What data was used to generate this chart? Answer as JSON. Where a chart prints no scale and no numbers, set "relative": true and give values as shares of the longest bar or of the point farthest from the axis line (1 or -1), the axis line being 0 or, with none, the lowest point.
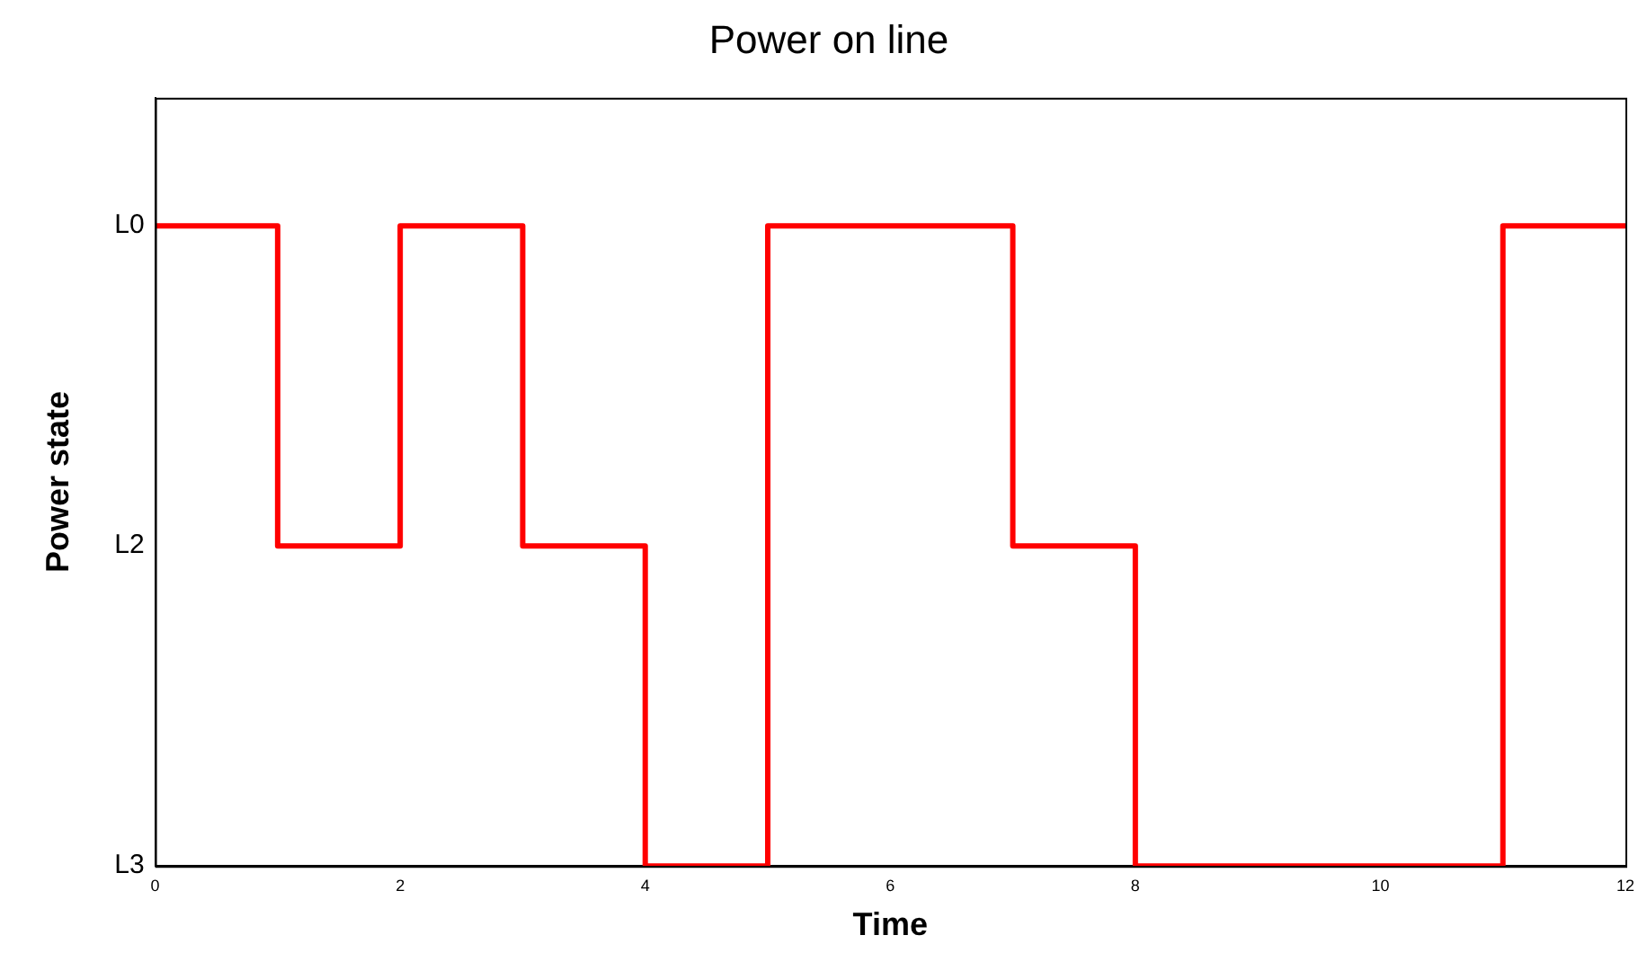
{
  "chart_data": {
    "type": "step",
    "title": "Power on line",
    "xlabel": "Time",
    "ylabel": "Power state",
    "x": [
      0,
      1,
      2,
      3,
      4,
      5,
      7,
      8,
      11,
      12
    ],
    "y_categories": [
      "L0",
      "L2",
      "L3"
    ],
    "relative": true,
    "series": [
      {
        "color": "#ff0000",
        "values": [
          1,
          0.5,
          1,
          0.5,
          0,
          1,
          0.5,
          0,
          1,
          1
        ]
      }
    ],
    "xlim": [
      0,
      12
    ],
    "xticks": [
      0,
      2,
      4,
      6,
      8,
      10,
      12
    ],
    "grid": false,
    "legend": false,
    "marker": "none",
    "line_style": "solid"
  }
}
